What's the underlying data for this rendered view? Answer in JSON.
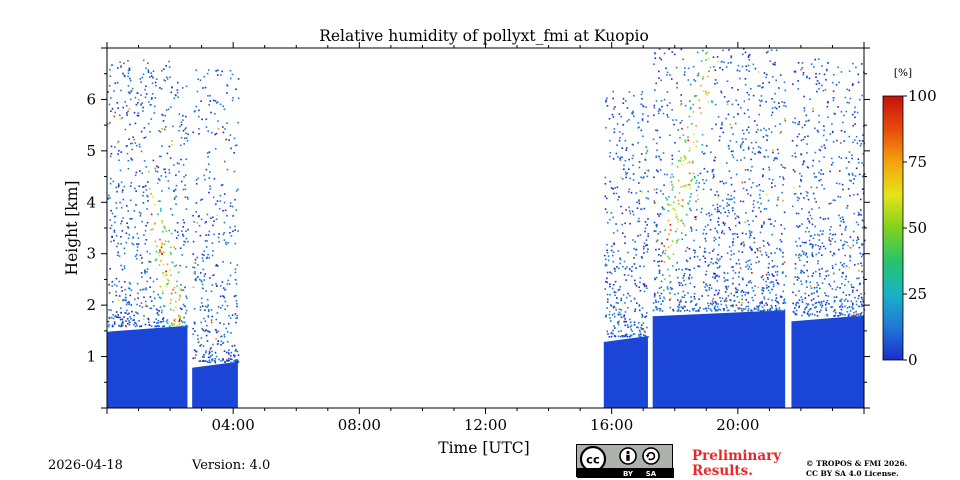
{
  "chart_data": {
    "type": "heatmap",
    "title": "Relative humidity of pollyxt_fmi at Kuopio",
    "xlabel": "Time [UTC]",
    "ylabel": "Height [km]",
    "xlim_hours": [
      0,
      24
    ],
    "ylim_km": [
      0,
      7
    ],
    "x_major_ticks_hours": [
      4,
      8,
      12,
      16,
      20
    ],
    "x_tick_labels": [
      "04:00",
      "08:00",
      "12:00",
      "16:00",
      "20:00"
    ],
    "y_ticks_km": [
      1,
      2,
      3,
      4,
      5,
      6
    ],
    "y_tick_labels": [
      "1",
      "2",
      "3",
      "4",
      "5",
      "6"
    ],
    "colorbar": {
      "unit_label": "[%]",
      "range": [
        0,
        100
      ],
      "ticks": [
        0,
        25,
        50,
        75,
        100
      ],
      "tick_labels": [
        "0",
        "25",
        "50",
        "75",
        "100"
      ],
      "colormap": [
        "#1a2fcc",
        "#1f78d6",
        "#18b3c4",
        "#27c46a",
        "#7fd21f",
        "#e6e41a",
        "#f3a30f",
        "#e84a0c",
        "#c8100c"
      ]
    },
    "data_segments": [
      {
        "start_hour": 0.0,
        "end_hour": 2.55,
        "dense_top_km": 1.6,
        "sparse_top_km": 6.8
      },
      {
        "start_hour": 2.7,
        "end_hour": 4.15,
        "dense_top_km": 0.9,
        "sparse_top_km": 6.6
      },
      {
        "start_hour": 15.75,
        "end_hour": 17.15,
        "dense_top_km": 1.4,
        "sparse_top_km": 6.2
      },
      {
        "start_hour": 17.3,
        "end_hour": 21.5,
        "dense_top_km": 1.9,
        "sparse_top_km": 7.0
      },
      {
        "start_hour": 21.7,
        "end_hour": 24.0,
        "dense_top_km": 1.8,
        "sparse_top_km": 6.8
      }
    ],
    "humid_layer_points": [
      {
        "hour": 1.3,
        "height_km": 4.0
      },
      {
        "hour": 2.3,
        "height_km": 1.7
      },
      {
        "hour": 17.6,
        "height_km": 3.0
      },
      {
        "hour": 18.5,
        "height_km": 5.0
      },
      {
        "hour": 19.2,
        "height_km": 6.8
      }
    ]
  },
  "footer": {
    "date": "2026-04-18",
    "version": "Version: 4.0",
    "preliminary_line1": "Preliminary",
    "preliminary_line2": "Results.",
    "copyright_line1": "© TROPOS & FMI 2026.",
    "copyright_line2": "CC BY SA 4.0 License.",
    "license_badge": {
      "cc": "cc",
      "by": "BY",
      "sa": "SA"
    }
  }
}
